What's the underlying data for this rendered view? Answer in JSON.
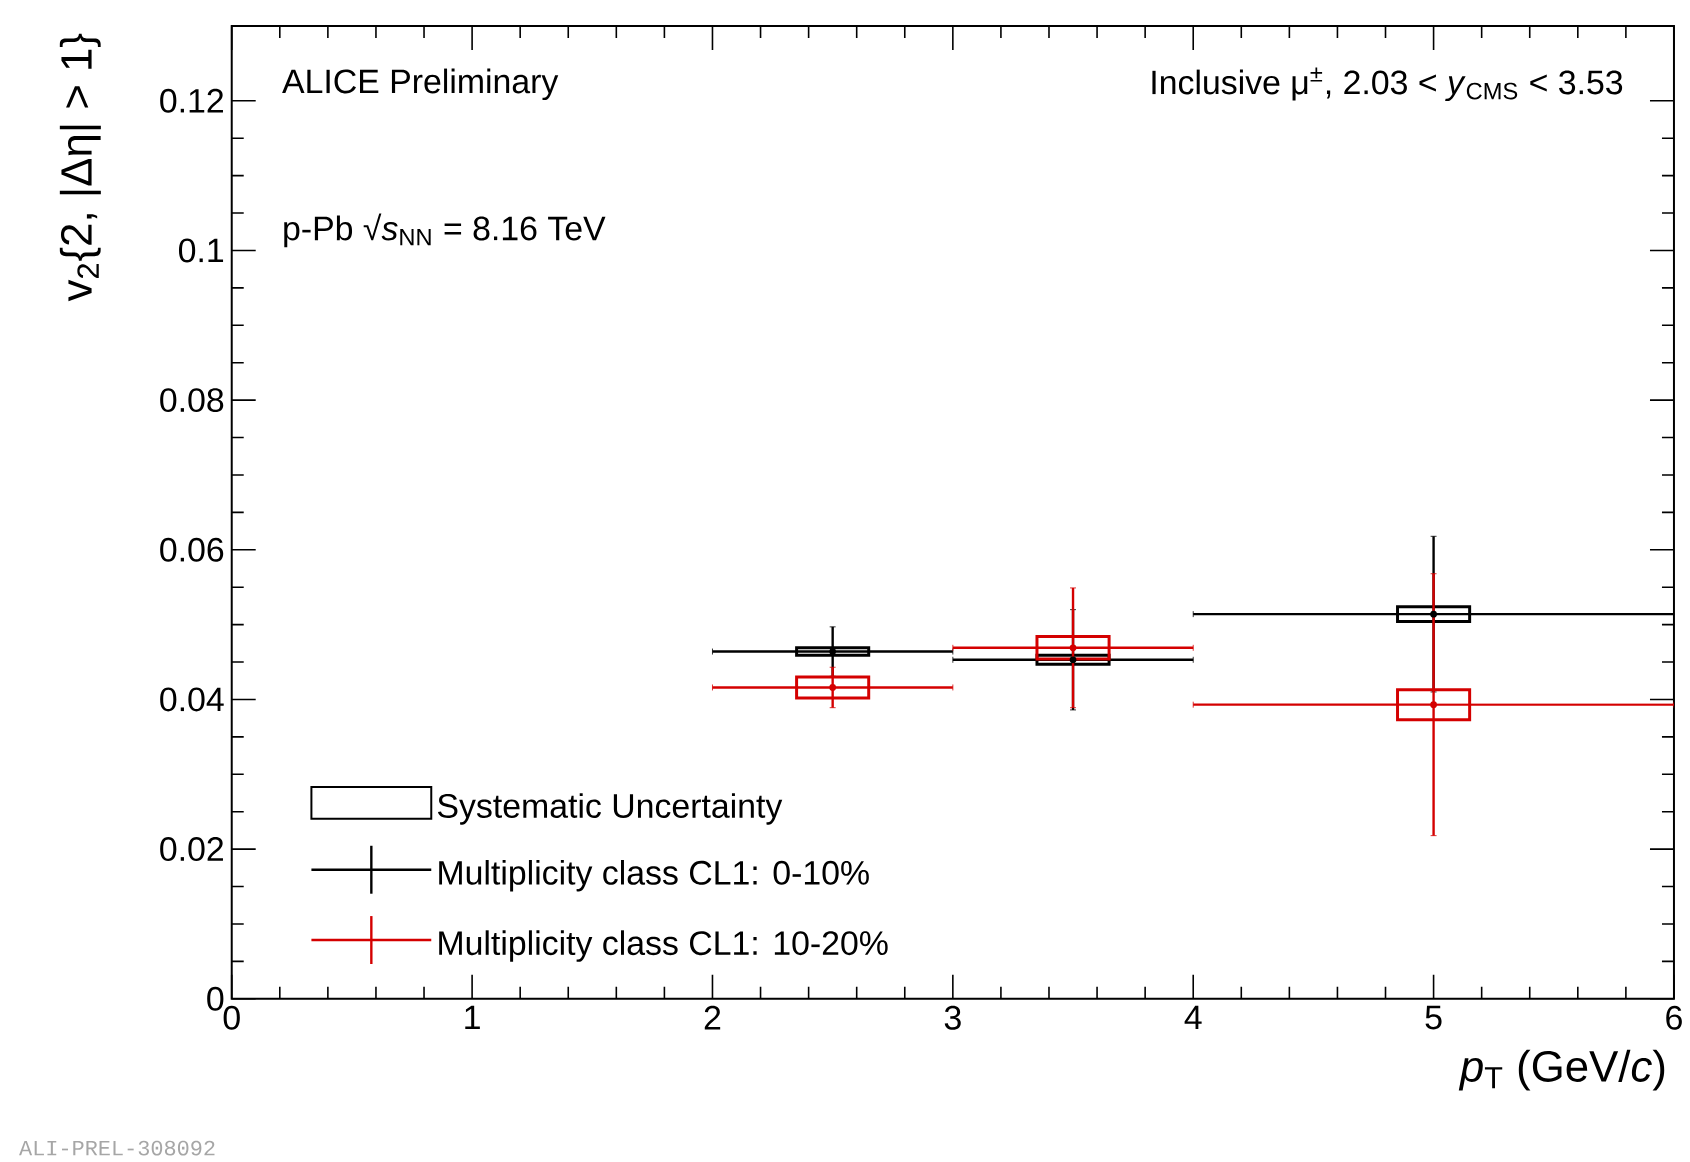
{
  "chart_data": {
    "type": "scatter",
    "xlabel": "*p*$_{T}$ (GeV/*c*)",
    "ylabel": "v$_{2}${2, |Δη| > 1}",
    "x": [
      2.5,
      3.5,
      5
    ],
    "series": [
      {
        "type": "bar",
        "name": "Systematic Uncertainty",
        "color": "#000000",
        "base": [
          0.0459,
          0.0447,
          0.0504
        ],
        "values": [
          0.001,
          0.0012,
          0.002
        ]
      },
      {
        "name": "Multiplicity class CL1: 0-10%",
        "color": "#000000",
        "values": [
          0.0464,
          0.0453,
          0.0514
        ],
        "errors": [
          0.0033,
          0.0067,
          0.0104
        ],
        "xerrors": [
          0.5,
          0.5,
          1
        ]
      },
      {
        "name": "Multiplicity class CL1: 10-20%",
        "color": "#d40000",
        "values": [
          0.0416,
          0.0469,
          0.0393
        ],
        "errors": [
          0.0027,
          0.008,
          0.0175
        ],
        "xerrors": [
          0.5,
          0.5,
          1
        ]
      },
      {
        "type": "bar",
        "color": "#d40000",
        "base": [
          0.0402,
          0.0454,
          0.0373
        ],
        "values": [
          0.0028,
          0.003,
          0.004
        ]
      }
    ],
    "annotations": [
      "ALICE Preliminary",
      "Inclusive μ$^{±}$,  2.03 < *y*$_{CMS}$ < 3.53",
      "p-Pb √*s*$_{NN}$ = 8.16 TeV",
      "ALI-PREL-308092"
    ],
    "xlim": [
      0,
      6
    ],
    "ylim": [
      0,
      0.13
    ],
    "xticks": [
      0,
      1,
      2,
      3,
      4,
      5,
      6
    ],
    "yticks": [
      0,
      0.02,
      0.04,
      0.06,
      0.08,
      0.1,
      0.12
    ],
    "grid": false,
    "legend": "bottom left",
    "marker": "circle"
  }
}
